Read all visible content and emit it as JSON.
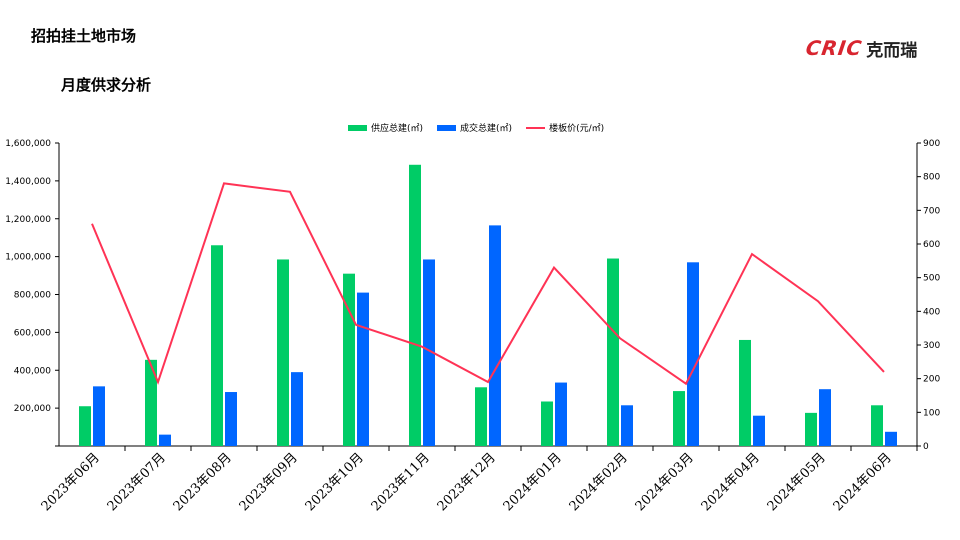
{
  "header": {
    "title": "招拍挂土地市场",
    "subtitle": "月度供求分析"
  },
  "logo": {
    "mark": "CRIC",
    "text": "克而瑞"
  },
  "colors": {
    "supply": "#00cc66",
    "deal": "#0066ff",
    "price": "#ff3355"
  },
  "chart_data": {
    "type": "bar",
    "categories": [
      "2023年06月",
      "2023年07月",
      "2023年08月",
      "2023年09月",
      "2023年10月",
      "2023年11月",
      "2023年12月",
      "2024年01月",
      "2024年02月",
      "2024年03月",
      "2024年04月",
      "2024年05月",
      "2024年06月"
    ],
    "series": [
      {
        "name": "供应总建(㎡)",
        "type": "bar",
        "axis": "left",
        "values": [
          210000,
          455000,
          1060000,
          985000,
          910000,
          1485000,
          310000,
          235000,
          990000,
          290000,
          560000,
          175000,
          215000
        ]
      },
      {
        "name": "成交总建(㎡)",
        "type": "bar",
        "axis": "left",
        "values": [
          315000,
          60000,
          285000,
          390000,
          810000,
          985000,
          1165000,
          335000,
          215000,
          970000,
          160000,
          300000,
          75000
        ]
      },
      {
        "name": "楼板价(元/㎡)",
        "type": "line",
        "axis": "right",
        "values": [
          660,
          190,
          780,
          755,
          360,
          295,
          190,
          530,
          320,
          185,
          570,
          430,
          220
        ]
      }
    ],
    "left_axis": {
      "ylim": [
        0,
        1600000
      ],
      "ticks": [
        "",
        "200,000",
        "400,000",
        "600,000",
        "800,000",
        "1,000,000",
        "1,200,000",
        "1,400,000",
        "1,600,000"
      ]
    },
    "right_axis": {
      "ylim": [
        0,
        900
      ],
      "ticks": [
        "0",
        "100",
        "200",
        "300",
        "400",
        "500",
        "600",
        "700",
        "800",
        "900"
      ]
    },
    "legend_position": "top-center"
  }
}
